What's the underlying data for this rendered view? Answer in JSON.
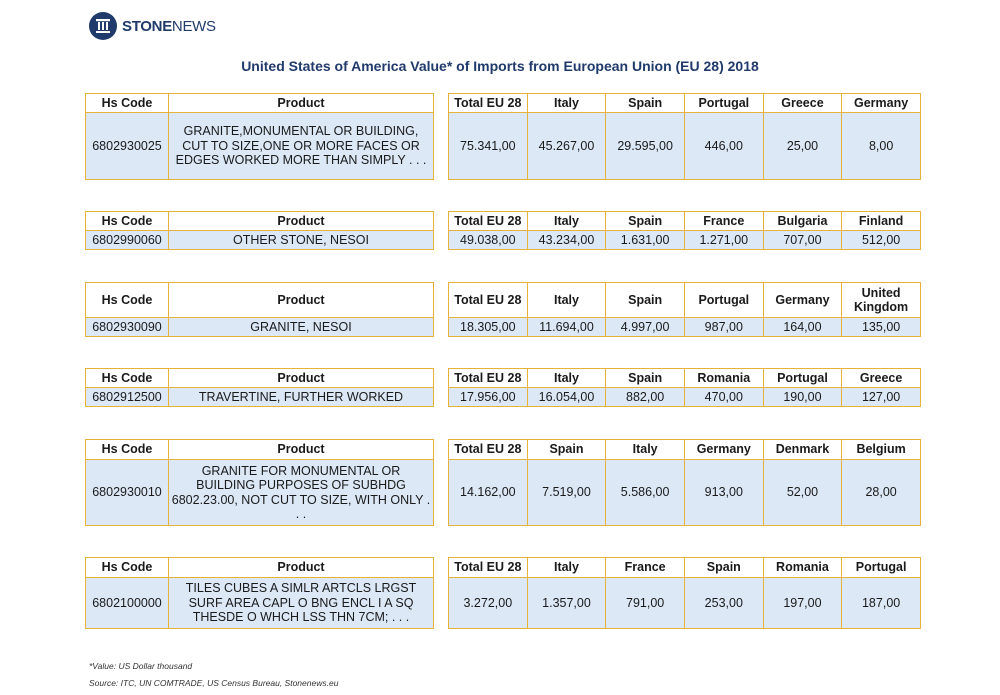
{
  "logo": {
    "brand_bold": "STONE",
    "brand_light": "NEWS"
  },
  "title": "United States of America Value* of Imports from European Union (EU 28) 2018",
  "left_headers": {
    "hs_code": "Hs Code",
    "product": "Product"
  },
  "blocks": [
    {
      "hs_code": "6802930025",
      "product": "GRANITE,MONUMENTAL OR BUILDING, CUT TO SIZE,ONE OR MORE FACES OR EDGES WORKED MORE THAN SIMPLY . . .",
      "headers": [
        "Total EU 28",
        "Italy",
        "Spain",
        "Portugal",
        "Greece",
        "Germany"
      ],
      "values": [
        "75.341,00",
        "45.267,00",
        "29.595,00",
        "446,00",
        "25,00",
        "8,00"
      ]
    },
    {
      "hs_code": "6802990060",
      "product": "OTHER STONE, NESOI",
      "headers": [
        "Total EU 28",
        "Italy",
        "Spain",
        "France",
        "Bulgaria",
        "Finland"
      ],
      "values": [
        "49.038,00",
        "43.234,00",
        "1.631,00",
        "1.271,00",
        "707,00",
        "512,00"
      ]
    },
    {
      "hs_code": "6802930090",
      "product": "GRANITE, NESOI",
      "headers": [
        "Total EU 28",
        "Italy",
        "Spain",
        "Portugal",
        "Germany",
        "United Kingdom"
      ],
      "values": [
        "18.305,00",
        "11.694,00",
        "4.997,00",
        "987,00",
        "164,00",
        "135,00"
      ]
    },
    {
      "hs_code": "6802912500",
      "product": "TRAVERTINE, FURTHER WORKED",
      "headers": [
        "Total EU 28",
        "Italy",
        "Spain",
        "Romania",
        "Portugal",
        "Greece"
      ],
      "values": [
        "17.956,00",
        "16.054,00",
        "882,00",
        "470,00",
        "190,00",
        "127,00"
      ]
    },
    {
      "hs_code": "6802930010",
      "product": "GRANITE FOR MONUMENTAL OR BUILDING PURPOSES OF SUBHDG 6802.23.00, NOT CUT TO SIZE, WITH ONLY . . .",
      "headers": [
        "Total EU 28",
        "Spain",
        "Italy",
        "Germany",
        "Denmark",
        "Belgium"
      ],
      "values": [
        "14.162,00",
        "7.519,00",
        "5.586,00",
        "913,00",
        "52,00",
        "28,00"
      ]
    },
    {
      "hs_code": "6802100000",
      "product": "TILES CUBES A SIMLR ARTCLS LRGST SURF AREA CAPL O BNG ENCL I A SQ THESDE O WHCH LSS THN 7CM; . . .",
      "headers": [
        "Total EU 28",
        "Italy",
        "France",
        "Spain",
        "Romania",
        "Portugal"
      ],
      "values": [
        "3.272,00",
        "1.357,00",
        "791,00",
        "253,00",
        "197,00",
        "187,00"
      ]
    }
  ],
  "footnote": "*Value: US Dollar thousand",
  "source": "Source: ITC, UN COMTRADE, US Census Bureau, Stonenews.eu"
}
